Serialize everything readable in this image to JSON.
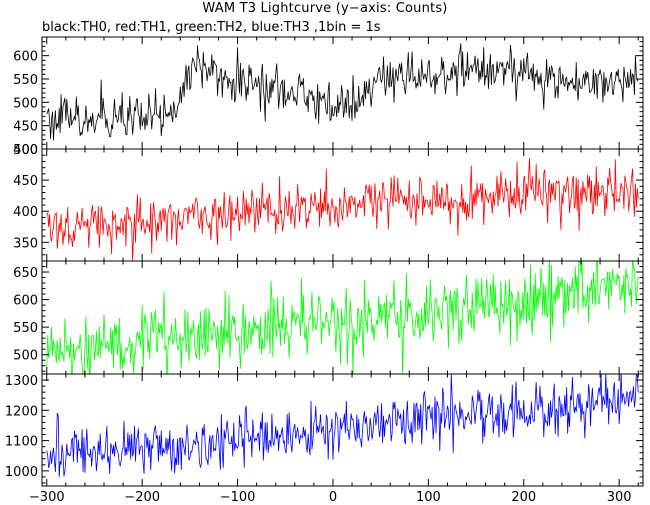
{
  "figure": {
    "title": "WAM T3 Lightcurve (y−axis: Counts)",
    "subtitle": "black:TH0, red:TH1, green:TH2, blue:TH3 ,1bin = 1s"
  },
  "chart_data": [
    {
      "type": "line",
      "name": "",
      "color": "#000000",
      "xlim": [
        -305,
        325
      ],
      "ylim": [
        400,
        640
      ],
      "yticks": [
        400,
        450,
        500,
        550,
        600
      ],
      "x": [
        -300,
        -280,
        -260,
        -240,
        -220,
        -200,
        -180,
        -165,
        -155,
        -145,
        -130,
        -110,
        -90,
        -70,
        -50,
        -30,
        -10,
        10,
        30,
        40,
        50,
        70,
        90,
        110,
        130,
        150,
        170,
        190,
        210,
        230,
        250,
        270,
        290,
        310,
        320
      ],
      "values": [
        470,
        465,
        455,
        460,
        458,
        462,
        470,
        478,
        540,
        585,
        570,
        550,
        540,
        535,
        530,
        518,
        500,
        490,
        495,
        530,
        548,
        565,
        555,
        560,
        575,
        570,
        575,
        568,
        555,
        545,
        548,
        545,
        545,
        548,
        545
      ]
    },
    {
      "type": "line",
      "name": "",
      "color": "#ff0000",
      "xlim": [
        -305,
        325
      ],
      "ylim": [
        320,
        500
      ],
      "yticks": [
        350,
        400,
        450,
        500
      ],
      "x": [
        -300,
        -260,
        -220,
        -180,
        -140,
        -100,
        -60,
        -20,
        20,
        60,
        100,
        140,
        180,
        220,
        260,
        300,
        320
      ],
      "values": [
        375,
        378,
        383,
        388,
        395,
        398,
        402,
        405,
        410,
        415,
        418,
        423,
        428,
        430,
        432,
        433,
        434
      ]
    },
    {
      "type": "line",
      "name": "",
      "color": "#00ff00",
      "xlim": [
        -305,
        325
      ],
      "ylim": [
        465,
        670
      ],
      "yticks": [
        500,
        550,
        600,
        650
      ],
      "x": [
        -300,
        -260,
        -220,
        -180,
        -140,
        -100,
        -60,
        -20,
        20,
        60,
        100,
        140,
        180,
        220,
        260,
        300,
        320
      ],
      "values": [
        512,
        515,
        520,
        528,
        533,
        540,
        545,
        552,
        562,
        570,
        575,
        585,
        595,
        605,
        615,
        625,
        630
      ]
    },
    {
      "type": "line",
      "name": "",
      "color": "#0000ff",
      "xlim": [
        -305,
        325
      ],
      "ylim": [
        950,
        1320
      ],
      "yticks": [
        1000,
        1100,
        1200,
        1300
      ],
      "x": [
        -300,
        -260,
        -220,
        -180,
        -140,
        -100,
        -60,
        -20,
        20,
        60,
        100,
        140,
        180,
        220,
        260,
        300,
        320
      ],
      "values": [
        1045,
        1055,
        1065,
        1075,
        1085,
        1100,
        1115,
        1130,
        1145,
        1160,
        1175,
        1190,
        1200,
        1210,
        1220,
        1232,
        1238
      ]
    }
  ],
  "x_axis": {
    "ticks": [
      -300,
      -200,
      -100,
      0,
      100,
      200,
      300
    ],
    "tick_labels": [
      "−300",
      "−200",
      "−100",
      "0",
      "100",
      "200",
      "300"
    ]
  }
}
